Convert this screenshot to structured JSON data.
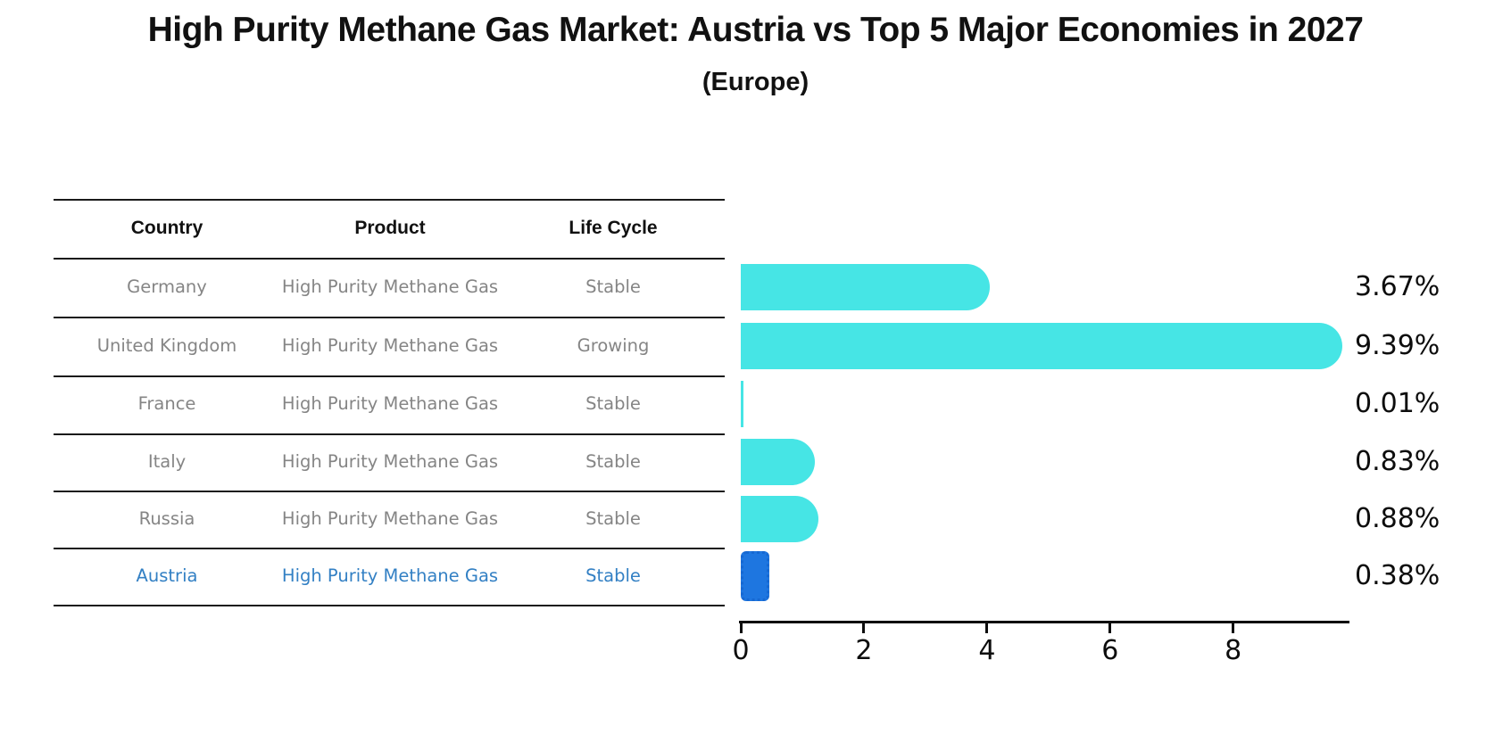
{
  "title": "High Purity Methane Gas Market: Austria vs Top 5 Major Economies in 2027",
  "subtitle": "(Europe)",
  "table": {
    "headers": [
      "Country",
      "Product",
      "Life Cycle"
    ],
    "rows": [
      {
        "country": "Germany",
        "product": "High Purity Methane Gas",
        "life_cycle": "Stable",
        "highlight": false
      },
      {
        "country": "United Kingdom",
        "product": "High Purity Methane Gas",
        "life_cycle": "Growing",
        "highlight": false
      },
      {
        "country": "France",
        "product": "High Purity Methane Gas",
        "life_cycle": "Stable",
        "highlight": false
      },
      {
        "country": "Italy",
        "product": "High Purity Methane Gas",
        "life_cycle": "Stable",
        "highlight": false
      },
      {
        "country": "Russia",
        "product": "High Purity Methane Gas",
        "life_cycle": "Stable",
        "highlight": false
      },
      {
        "country": "Austria",
        "product": "High Purity Methane Gas",
        "life_cycle": "Stable",
        "highlight": true
      }
    ]
  },
  "chart_data": {
    "type": "bar",
    "orientation": "horizontal",
    "categories": [
      "Germany",
      "United Kingdom",
      "France",
      "Italy",
      "Russia",
      "Austria"
    ],
    "values": [
      3.67,
      9.39,
      0.01,
      0.83,
      0.88,
      0.38
    ],
    "labels": [
      "3.67%",
      "9.39%",
      "0.01%",
      "0.83%",
      "0.88%",
      "0.38%"
    ],
    "title": "High Purity Methane Gas Market: Austria vs Top 5 Major Economies in 2027 (Europe)",
    "xlabel": "",
    "ylabel": "",
    "xlim": [
      0,
      9.86
    ],
    "x_ticks": [
      0,
      2,
      4,
      6,
      8
    ],
    "grid": false,
    "legend": false,
    "bar_color": "#46E5E5",
    "highlight_color": "#1E76E0",
    "highlight_index": 5,
    "highlight_text_color": "#3380C4"
  }
}
